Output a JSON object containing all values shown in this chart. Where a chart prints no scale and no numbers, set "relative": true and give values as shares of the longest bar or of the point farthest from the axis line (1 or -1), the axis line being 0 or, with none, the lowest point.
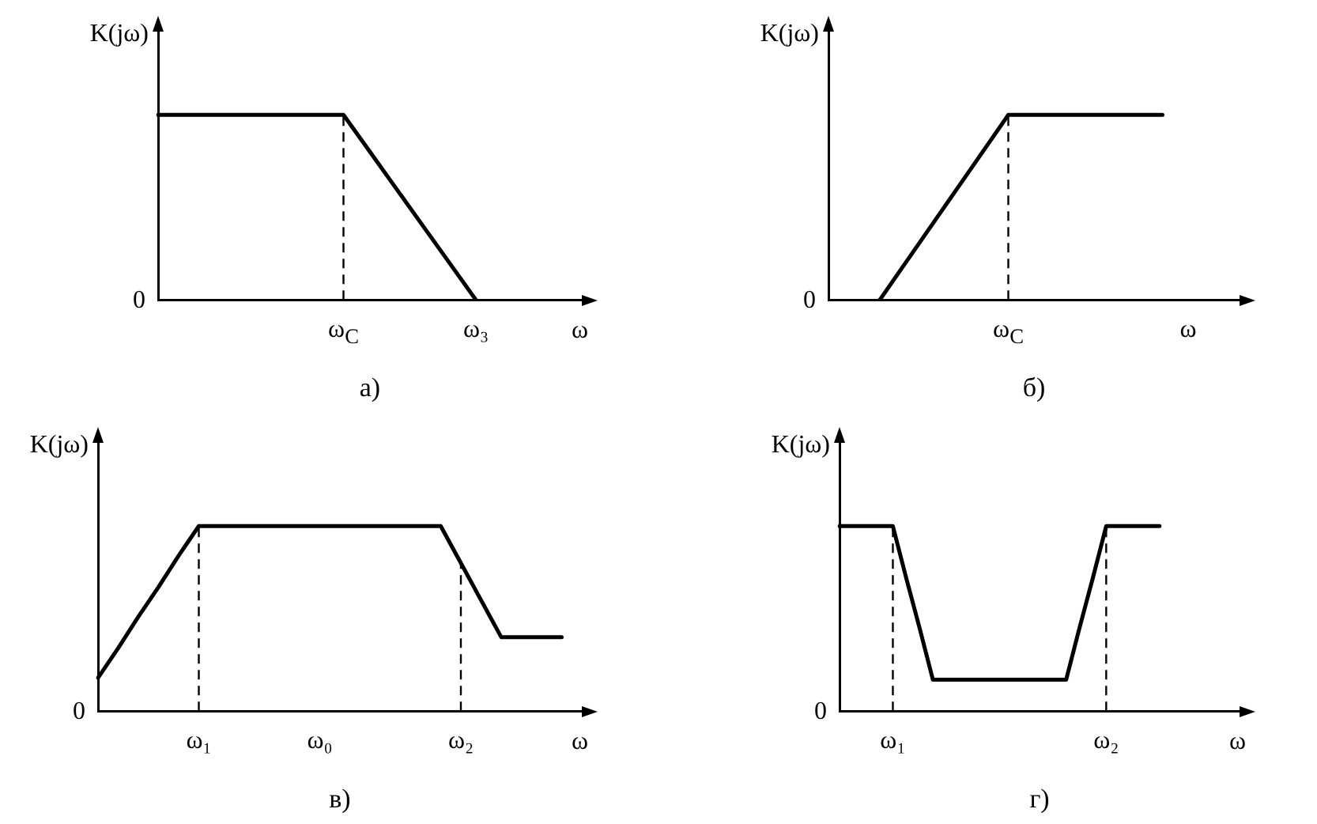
{
  "chart_data": [
    {
      "type": "line",
      "title": "а)",
      "xlabel": "ω",
      "ylabel": "K(jω)",
      "relative": true,
      "grid": false,
      "marker": "none",
      "annotations": [
        "0"
      ],
      "categories": [
        null,
        null,
        null,
        null,
        null,
        null,
        null,
        "ω$_{C}$",
        null,
        null,
        null,
        null,
        "ω₃",
        null,
        null,
        null,
        null
      ],
      "ref_lines": [
        {
          "axis": "x",
          "value": "ω$_{C}$",
          "line_style": "dashed",
          "color": "#000000"
        }
      ],
      "series": [
        {
          "color": "#000000",
          "values": [
            1,
            1,
            1,
            1,
            1,
            1,
            1,
            1,
            0.8,
            0.6,
            0.4,
            0.2,
            0,
            null,
            null,
            null,
            null
          ]
        }
      ]
    },
    {
      "type": "line",
      "title": "б)",
      "ylabel": "K(jω)",
      "relative": true,
      "grid": false,
      "marker": "none",
      "annotations": [
        "0"
      ],
      "categories": [
        null,
        null,
        null,
        null,
        null,
        null,
        null,
        "ω$_{C}$",
        null,
        null,
        null,
        null,
        null,
        null,
        "ω",
        null,
        null
      ],
      "ref_lines": [
        {
          "axis": "x",
          "value": "ω$_{C}$",
          "line_style": "dashed",
          "color": "#000000"
        }
      ],
      "series": [
        {
          "color": "#000000",
          "values": [
            null,
            null,
            0,
            0.2,
            0.4,
            0.6,
            0.8,
            1,
            1,
            1,
            1,
            1,
            1,
            1,
            null,
            null,
            null
          ]
        }
      ]
    },
    {
      "type": "line",
      "title": "в)",
      "xlabel": "ω",
      "ylabel": "K(jω)",
      "relative": true,
      "grid": false,
      "marker": "none",
      "annotations": [
        "0"
      ],
      "categories": [
        null,
        null,
        null,
        null,
        null,
        "ω₁",
        null,
        null,
        null,
        null,
        null,
        "ω₀",
        null,
        null,
        null,
        null,
        null,
        null,
        "ω₂",
        null,
        null,
        null,
        null,
        null,
        null
      ],
      "ref_lines": [
        {
          "axis": "x",
          "value": "ω₁",
          "line_style": "dashed",
          "color": "#000000"
        },
        {
          "axis": "x",
          "value": "ω₂",
          "line_style": "dashed",
          "color": "#000000"
        }
      ],
      "series": [
        {
          "color": "#000000",
          "values": [
            0.18,
            0.34,
            0.51,
            0.67,
            0.84,
            1,
            1,
            1,
            1,
            1,
            1,
            1,
            1,
            1,
            1,
            1,
            1,
            1,
            0.8,
            0.6,
            0.4,
            0.4,
            0.4,
            0.4,
            null
          ]
        }
      ]
    },
    {
      "type": "line",
      "title": "г)",
      "xlabel": "ω",
      "ylabel": "K(jω)",
      "relative": true,
      "grid": false,
      "marker": "none",
      "annotations": [
        "0"
      ],
      "categories": [
        null,
        null,
        null,
        null,
        "ω₁",
        null,
        null,
        null,
        null,
        null,
        null,
        null,
        null,
        null,
        null,
        null,
        null,
        null,
        null,
        null,
        "ω₂",
        null,
        null,
        null,
        null,
        null,
        null,
        null,
        null,
        null,
        null
      ],
      "ref_lines": [
        {
          "axis": "x",
          "value": "ω₁",
          "line_style": "dashed",
          "color": "#000000"
        },
        {
          "axis": "x",
          "value": "ω₂",
          "line_style": "dashed",
          "color": "#000000"
        }
      ],
      "series": [
        {
          "color": "#000000",
          "values": [
            1,
            1,
            1,
            1,
            1,
            0.72,
            0.45,
            0.17,
            0.17,
            0.17,
            0.17,
            0.17,
            0.17,
            0.17,
            0.17,
            0.17,
            0.17,
            0.17,
            0.45,
            0.72,
            1,
            1,
            1,
            1,
            1,
            null,
            null,
            null,
            null,
            null,
            null
          ]
        }
      ]
    }
  ]
}
